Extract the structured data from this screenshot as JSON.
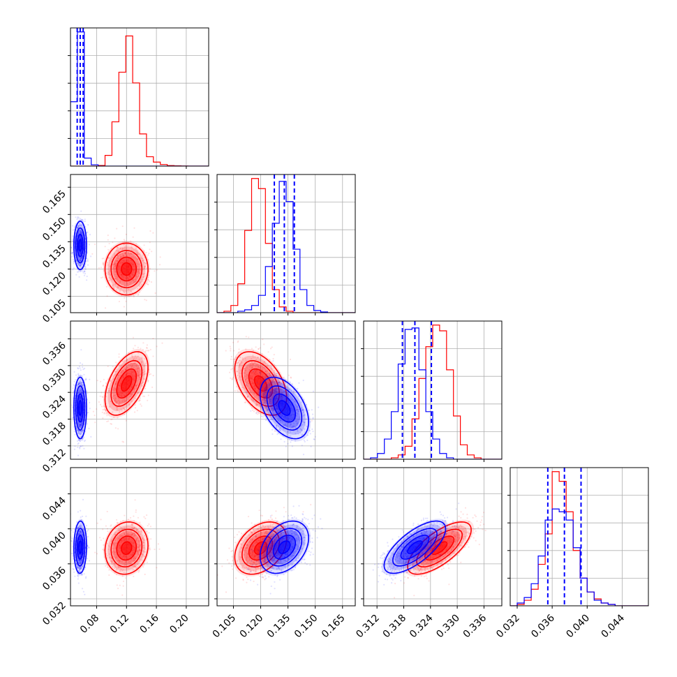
{
  "colors": {
    "red": "#ff0000",
    "blue": "#0000ff"
  },
  "chart_data": {
    "type": "corner",
    "title": "",
    "grid": true,
    "legend": "none",
    "parameters": [
      {
        "xlim": [
          0.045,
          0.23
        ],
        "ticks": [
          0.08,
          0.12,
          0.16,
          0.2
        ],
        "tick_labels": [
          "0.08",
          "0.12",
          "0.16",
          "0.20"
        ]
      },
      {
        "xlim": [
          0.096,
          0.172
        ],
        "ticks": [
          0.105,
          0.12,
          0.135,
          0.15,
          0.165
        ],
        "tick_labels": [
          "0.105",
          "0.120",
          "0.135",
          "0.150",
          "0.165"
        ]
      },
      {
        "xlim": [
          0.309,
          0.34
        ],
        "ticks": [
          0.312,
          0.318,
          0.324,
          0.33,
          0.336
        ],
        "tick_labels": [
          "0.312",
          "0.318",
          "0.324",
          "0.330",
          "0.336"
        ]
      },
      {
        "xlim": [
          0.0312,
          0.047
        ],
        "ticks": [
          0.032,
          0.036,
          0.04,
          0.044
        ],
        "tick_labels": [
          "0.032",
          "0.036",
          "0.040",
          "0.044"
        ]
      }
    ],
    "series": [
      {
        "color": "red",
        "mean": [
          0.12,
          0.12,
          0.326,
          0.0378
        ],
        "sigma": [
          0.0125,
          0.0062,
          0.0031,
          0.0013
        ]
      },
      {
        "color": "blue",
        "mean": [
          0.058,
          0.133,
          0.3205,
          0.0379
        ],
        "sigma": [
          0.0037,
          0.0058,
          0.003,
          0.0013
        ]
      }
    ],
    "correlations": {
      "red": {
        "1-0": 0.0,
        "2-0": 0.5,
        "2-1": -0.45,
        "3-0": 0.1,
        "3-1": 0.35,
        "3-2": 0.7
      },
      "blue": {
        "1-0": 0.0,
        "2-0": 0.0,
        "2-1": -0.45,
        "3-0": 0.05,
        "3-1": 0.35,
        "3-2": 0.7
      }
    },
    "histograms": [
      {
        "edges": [
          0.045,
          0.05425,
          0.0635,
          0.07275,
          0.082,
          0.09125,
          0.1005,
          0.10975,
          0.119,
          0.12825,
          0.1375,
          0.14675,
          0.156,
          0.16525,
          0.1745,
          0.18375,
          0.193,
          0.20225,
          0.2115,
          0.22075,
          0.23
        ],
        "red": [
          0,
          0,
          0,
          0,
          0.005,
          0.08,
          0.33,
          0.7,
          0.97,
          0.62,
          0.24,
          0.07,
          0.03,
          0.012,
          0.004,
          0.002,
          0.001,
          0,
          0,
          0
        ],
        "blue": [
          0.48,
          1.0,
          0.06,
          0.01,
          0,
          0,
          0,
          0,
          0,
          0,
          0,
          0,
          0,
          0,
          0,
          0,
          0,
          0,
          0,
          0
        ]
      },
      {
        "edges": [
          0.096,
          0.0998,
          0.1036,
          0.1074,
          0.1112,
          0.115,
          0.1188,
          0.1226,
          0.1264,
          0.1302,
          0.134,
          0.1378,
          0.1416,
          0.1454,
          0.1492,
          0.153,
          0.1568,
          0.1606,
          0.1644,
          0.1682,
          0.172
        ],
        "red": [
          0,
          0.01,
          0.05,
          0.2,
          0.57,
          0.93,
          0.86,
          0.48,
          0.16,
          0.04,
          0.01,
          0,
          0,
          0,
          0,
          0,
          0,
          0,
          0,
          0
        ],
        "blue": [
          0,
          0,
          0,
          0.01,
          0.02,
          0.05,
          0.12,
          0.32,
          0.62,
          0.91,
          0.77,
          0.44,
          0.16,
          0.05,
          0.015,
          0.005,
          0,
          0,
          0,
          0
        ]
      },
      {
        "edges": [
          0.309,
          0.31055,
          0.3121,
          0.31365,
          0.3152,
          0.31675,
          0.3183,
          0.31985,
          0.3214,
          0.32295,
          0.3245,
          0.32605,
          0.3276,
          0.32915,
          0.3307,
          0.33225,
          0.3338,
          0.33535,
          0.3369,
          0.33845,
          0.34
        ],
        "red": [
          0,
          0,
          0,
          0,
          0.01,
          0.03,
          0.09,
          0.28,
          0.56,
          0.78,
          0.93,
          0.89,
          0.62,
          0.3,
          0.1,
          0.03,
          0.01,
          0,
          0,
          0
        ],
        "blue": [
          0,
          0.01,
          0.04,
          0.14,
          0.33,
          0.66,
          0.9,
          0.91,
          0.62,
          0.33,
          0.14,
          0.04,
          0.01,
          0,
          0,
          0,
          0,
          0,
          0,
          0
        ]
      },
      {
        "edges": [
          0.0312,
          0.032,
          0.0328,
          0.0336,
          0.0344,
          0.0352,
          0.036,
          0.0368,
          0.0376,
          0.0384,
          0.0392,
          0.04,
          0.0408,
          0.0416,
          0.0424,
          0.0432,
          0.044,
          0.0448,
          0.0456,
          0.0464,
          0.047
        ],
        "red": [
          0,
          0.01,
          0.04,
          0.12,
          0.3,
          0.52,
          0.97,
          0.9,
          0.68,
          0.4,
          0.2,
          0.1,
          0.05,
          0.02,
          0.01,
          0,
          0,
          0,
          0,
          0
        ],
        "blue": [
          0,
          0.02,
          0.06,
          0.16,
          0.36,
          0.62,
          0.7,
          0.68,
          0.62,
          0.42,
          0.2,
          0.1,
          0.04,
          0.02,
          0.01,
          0,
          0,
          0,
          0,
          0
        ]
      }
    ],
    "quantile_lines": {
      "color": "blue",
      "values": [
        [
          0.054,
          0.058,
          0.062
        ],
        [
          0.1275,
          0.133,
          0.1385
        ],
        [
          0.3177,
          0.3205,
          0.3242
        ],
        [
          0.0355,
          0.0374,
          0.0393
        ]
      ]
    }
  }
}
